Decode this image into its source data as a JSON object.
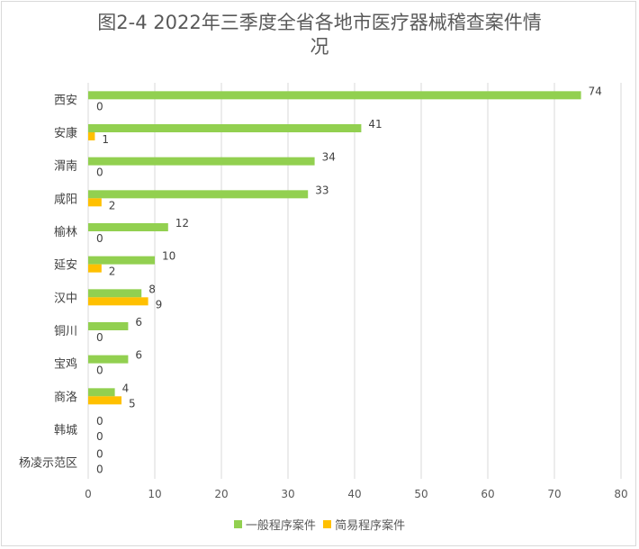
{
  "chart_data": {
    "type": "bar",
    "orientation": "horizontal",
    "title_lines": [
      "图2-4  2022年三季度全省各地市医疗器械稽查案件情",
      "况"
    ],
    "categories": [
      "西安",
      "安康",
      "渭南",
      "咸阳",
      "榆林",
      "延安",
      "汉中",
      "铜川",
      "宝鸡",
      "商洛",
      "韩城",
      "杨凌示范区"
    ],
    "series": [
      {
        "name": "一般程序案件",
        "color": "#92d050",
        "values": [
          74,
          41,
          34,
          33,
          12,
          10,
          8,
          6,
          6,
          4,
          0,
          0
        ]
      },
      {
        "name": "简易程序案件",
        "color": "#ffc000",
        "values": [
          0,
          1,
          0,
          2,
          0,
          2,
          9,
          0,
          0,
          5,
          0,
          0
        ]
      }
    ],
    "xlim": [
      0,
      80
    ],
    "xticks": [
      0,
      10,
      20,
      30,
      40,
      50,
      60,
      70,
      80
    ],
    "grid": true,
    "legend_position": "bottom"
  }
}
